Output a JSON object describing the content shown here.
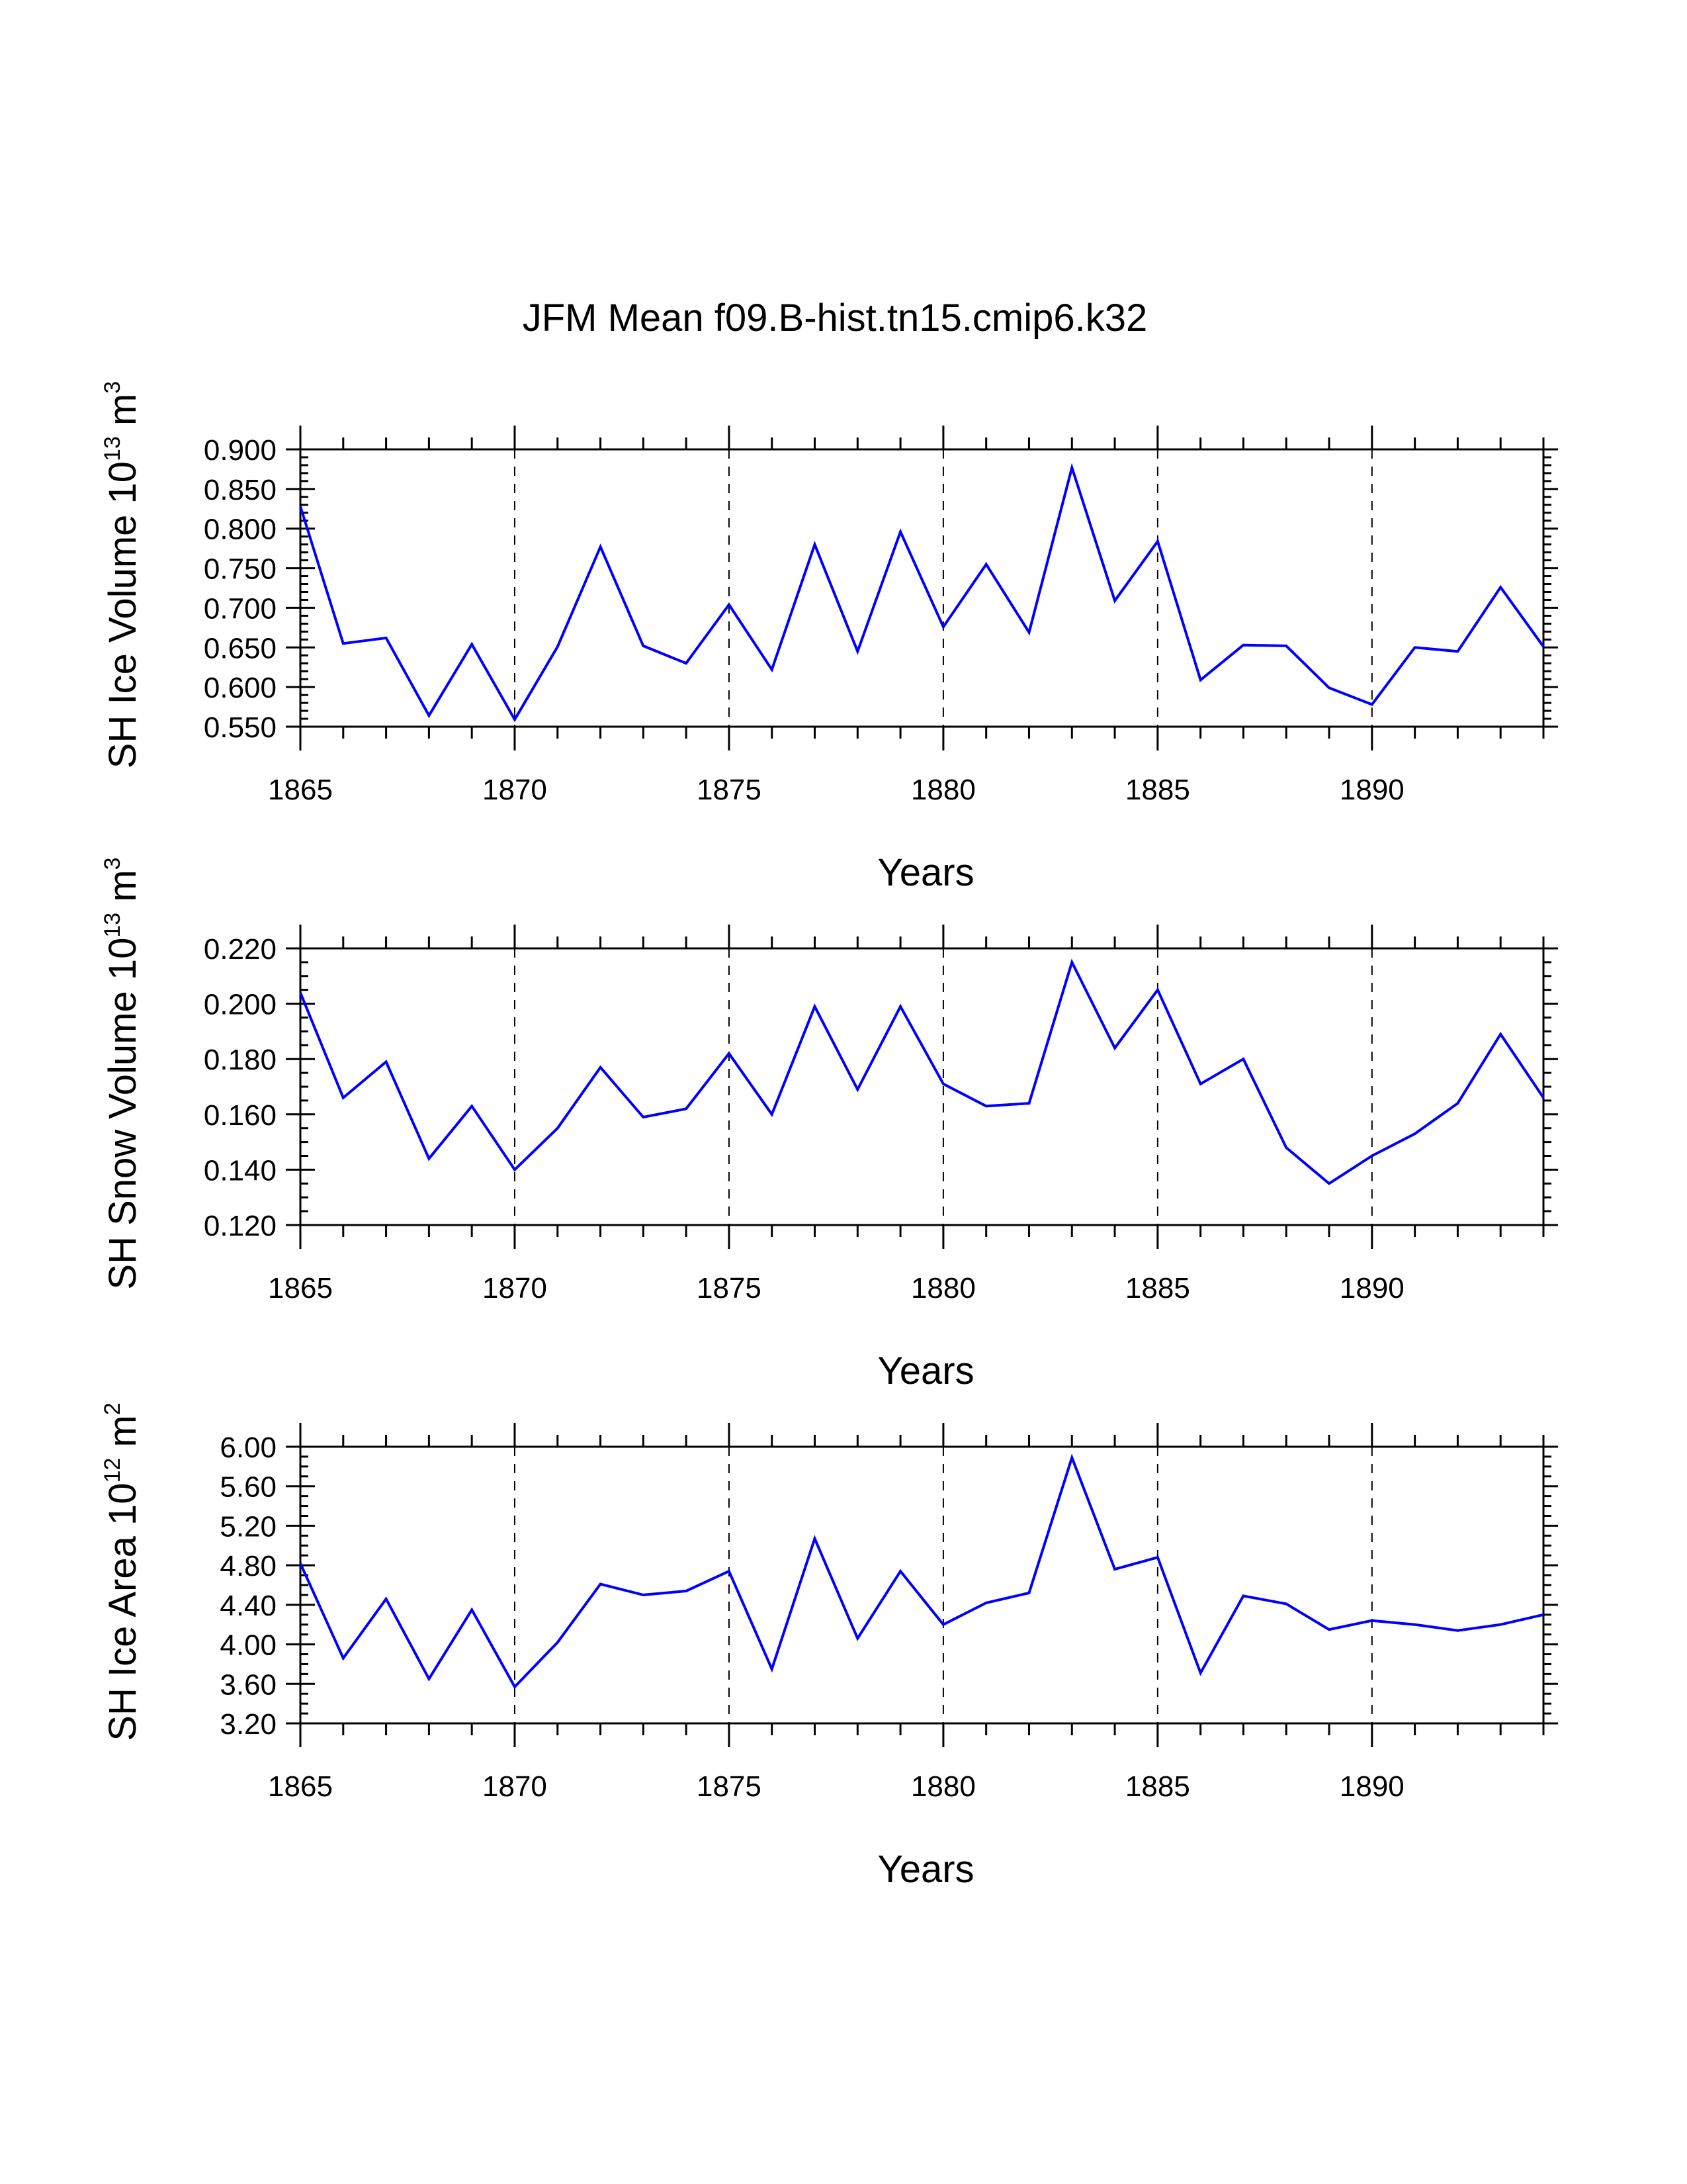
{
  "page": {
    "title": "JFM Mean f09.B-hist.tn15.cmip6.k32"
  },
  "colors": {
    "series": "#0000ff",
    "axes": "#000000",
    "background": "#ffffff"
  },
  "chart_data": [
    {
      "type": "line",
      "title": "JFM Mean f09.B-hist.tn15.cmip6.k32",
      "xlabel": "Years",
      "ylabel": "SH Ice Volume 10^13 m^3",
      "ylabel_parts": {
        "main": "SH Ice Volume 10",
        "exp1": "13",
        "unit": " m",
        "exp2": "3"
      },
      "xlim": [
        1865,
        1894
      ],
      "ylim": [
        0.55,
        0.9
      ],
      "x_ticks": [
        1865,
        1870,
        1875,
        1880,
        1885,
        1890
      ],
      "x_tick_labels": [
        "1865",
        "1870",
        "1875",
        "1880",
        "1885",
        "1890"
      ],
      "y_ticks": [
        0.55,
        0.6,
        0.65,
        0.7,
        0.75,
        0.8,
        0.85,
        0.9
      ],
      "y_tick_labels": [
        "0.550",
        "0.600",
        "0.650",
        "0.700",
        "0.750",
        "0.800",
        "0.850",
        "0.900"
      ],
      "y_minor_step": 0.01,
      "grid": "vertical dashed at major x ticks",
      "x": [
        1865,
        1866,
        1867,
        1868,
        1869,
        1870,
        1871,
        1872,
        1873,
        1874,
        1875,
        1876,
        1877,
        1878,
        1879,
        1880,
        1881,
        1882,
        1883,
        1884,
        1885,
        1886,
        1887,
        1888,
        1889,
        1890,
        1891,
        1892,
        1893,
        1894
      ],
      "series": [
        {
          "name": "SH Ice Volume",
          "color": "#0000ff",
          "values": [
            0.828,
            0.655,
            0.662,
            0.564,
            0.654,
            0.559,
            0.651,
            0.777,
            0.652,
            0.63,
            0.704,
            0.622,
            0.78,
            0.645,
            0.796,
            0.676,
            0.755,
            0.669,
            0.877,
            0.709,
            0.784,
            0.609,
            0.653,
            0.652,
            0.599,
            0.578,
            0.65,
            0.645,
            0.726,
            0.651
          ]
        }
      ]
    },
    {
      "type": "line",
      "xlabel": "Years",
      "ylabel": "SH Snow Volume 10^13 m^3",
      "ylabel_parts": {
        "main": "SH Snow Volume 10",
        "exp1": "13",
        "unit": " m",
        "exp2": "3"
      },
      "xlim": [
        1865,
        1894
      ],
      "ylim": [
        0.12,
        0.22
      ],
      "x_ticks": [
        1865,
        1870,
        1875,
        1880,
        1885,
        1890
      ],
      "x_tick_labels": [
        "1865",
        "1870",
        "1875",
        "1880",
        "1885",
        "1890"
      ],
      "y_ticks": [
        0.12,
        0.14,
        0.16,
        0.18,
        0.2,
        0.22
      ],
      "y_tick_labels": [
        "0.120",
        "0.140",
        "0.160",
        "0.180",
        "0.200",
        "0.220"
      ],
      "y_minor_step": 0.005,
      "grid": "vertical dashed at major x ticks",
      "x": [
        1865,
        1866,
        1867,
        1868,
        1869,
        1870,
        1871,
        1872,
        1873,
        1874,
        1875,
        1876,
        1877,
        1878,
        1879,
        1880,
        1881,
        1882,
        1883,
        1884,
        1885,
        1886,
        1887,
        1888,
        1889,
        1890,
        1891,
        1892,
        1893,
        1894
      ],
      "series": [
        {
          "name": "SH Snow Volume",
          "color": "#0000ff",
          "values": [
            0.204,
            0.166,
            0.179,
            0.144,
            0.163,
            0.14,
            0.155,
            0.177,
            0.159,
            0.162,
            0.182,
            0.16,
            0.199,
            0.169,
            0.199,
            0.171,
            0.163,
            0.164,
            0.215,
            0.184,
            0.205,
            0.171,
            0.18,
            0.148,
            0.135,
            0.145,
            0.153,
            0.164,
            0.189,
            0.166
          ]
        }
      ]
    },
    {
      "type": "line",
      "xlabel": "Years",
      "ylabel": "SH Ice Area 10^12 m^2",
      "ylabel_parts": {
        "main": "SH Ice Area 10",
        "exp1": "12",
        "unit": " m",
        "exp2": "2"
      },
      "xlim": [
        1865,
        1894
      ],
      "ylim": [
        3.2,
        6.0
      ],
      "x_ticks": [
        1865,
        1870,
        1875,
        1880,
        1885,
        1890
      ],
      "x_tick_labels": [
        "1865",
        "1870",
        "1875",
        "1880",
        "1885",
        "1890"
      ],
      "y_ticks": [
        3.2,
        3.6,
        4.0,
        4.4,
        4.8,
        5.2,
        5.6,
        6.0
      ],
      "y_tick_labels": [
        "3.20",
        "3.60",
        "4.00",
        "4.40",
        "4.80",
        "5.20",
        "5.60",
        "6.00"
      ],
      "y_minor_step": 0.1,
      "grid": "vertical dashed at major x ticks",
      "x": [
        1865,
        1866,
        1867,
        1868,
        1869,
        1870,
        1871,
        1872,
        1873,
        1874,
        1875,
        1876,
        1877,
        1878,
        1879,
        1880,
        1881,
        1882,
        1883,
        1884,
        1885,
        1886,
        1887,
        1888,
        1889,
        1890,
        1891,
        1892,
        1893,
        1894
      ],
      "series": [
        {
          "name": "SH Ice Area",
          "color": "#0000ff",
          "values": [
            4.82,
            3.86,
            4.46,
            3.65,
            4.35,
            3.57,
            4.02,
            4.61,
            4.5,
            4.54,
            4.74,
            3.75,
            5.07,
            4.06,
            4.74,
            4.2,
            4.42,
            4.52,
            5.89,
            4.76,
            4.88,
            3.71,
            4.49,
            4.41,
            4.15,
            4.24,
            4.2,
            4.14,
            4.2,
            4.3
          ]
        }
      ]
    }
  ]
}
